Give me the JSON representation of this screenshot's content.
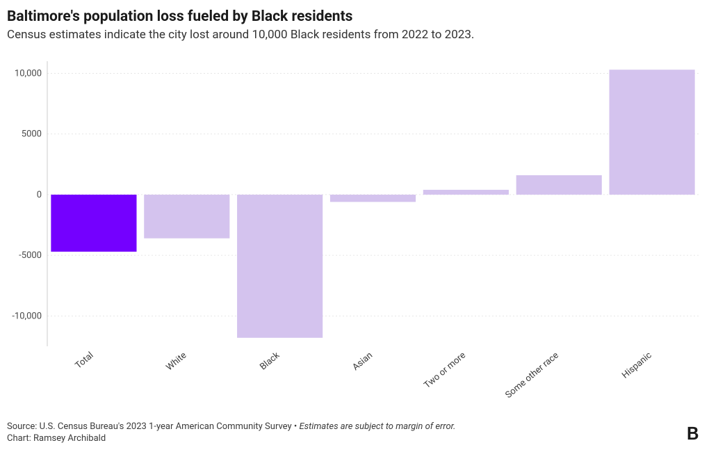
{
  "header": {
    "title": "Baltimore's population loss fueled by Black residents",
    "subtitle": "Census estimates indicate the city lost around 10,000 Black residents from 2022 to 2023."
  },
  "chart": {
    "type": "bar",
    "categories": [
      "Total",
      "White",
      "Black",
      "Asian",
      "Two or more",
      "Some other race",
      "Hispanic"
    ],
    "values": [
      -4700,
      -3600,
      -11800,
      -600,
      400,
      1600,
      10300
    ],
    "bar_colors": [
      "#7400ff",
      "#d4c3ee",
      "#d4c3ee",
      "#d4c3ee",
      "#d4c3ee",
      "#d4c3ee",
      "#d4c3ee"
    ],
    "ylim": [
      -12500,
      11000
    ],
    "yticks": [
      -10000,
      -5000,
      0,
      5000,
      10000
    ],
    "ytick_labels": [
      "-10,000",
      "-5000",
      "0",
      "5000",
      "10,000"
    ],
    "bar_width_ratio": 0.92,
    "background_color": "#ffffff",
    "grid_color": "#e6e6e6",
    "axis_color": "#cccccc",
    "label_fontsize": 13,
    "x_label_rotation": -40
  },
  "footer": {
    "source_prefix": "Source: U.S. Census Bureau's 2023 1-year American Community Survey • ",
    "source_italic": "Estimates are subject to margin of error.",
    "chart_credit": "Chart: Ramsey Archibald"
  }
}
